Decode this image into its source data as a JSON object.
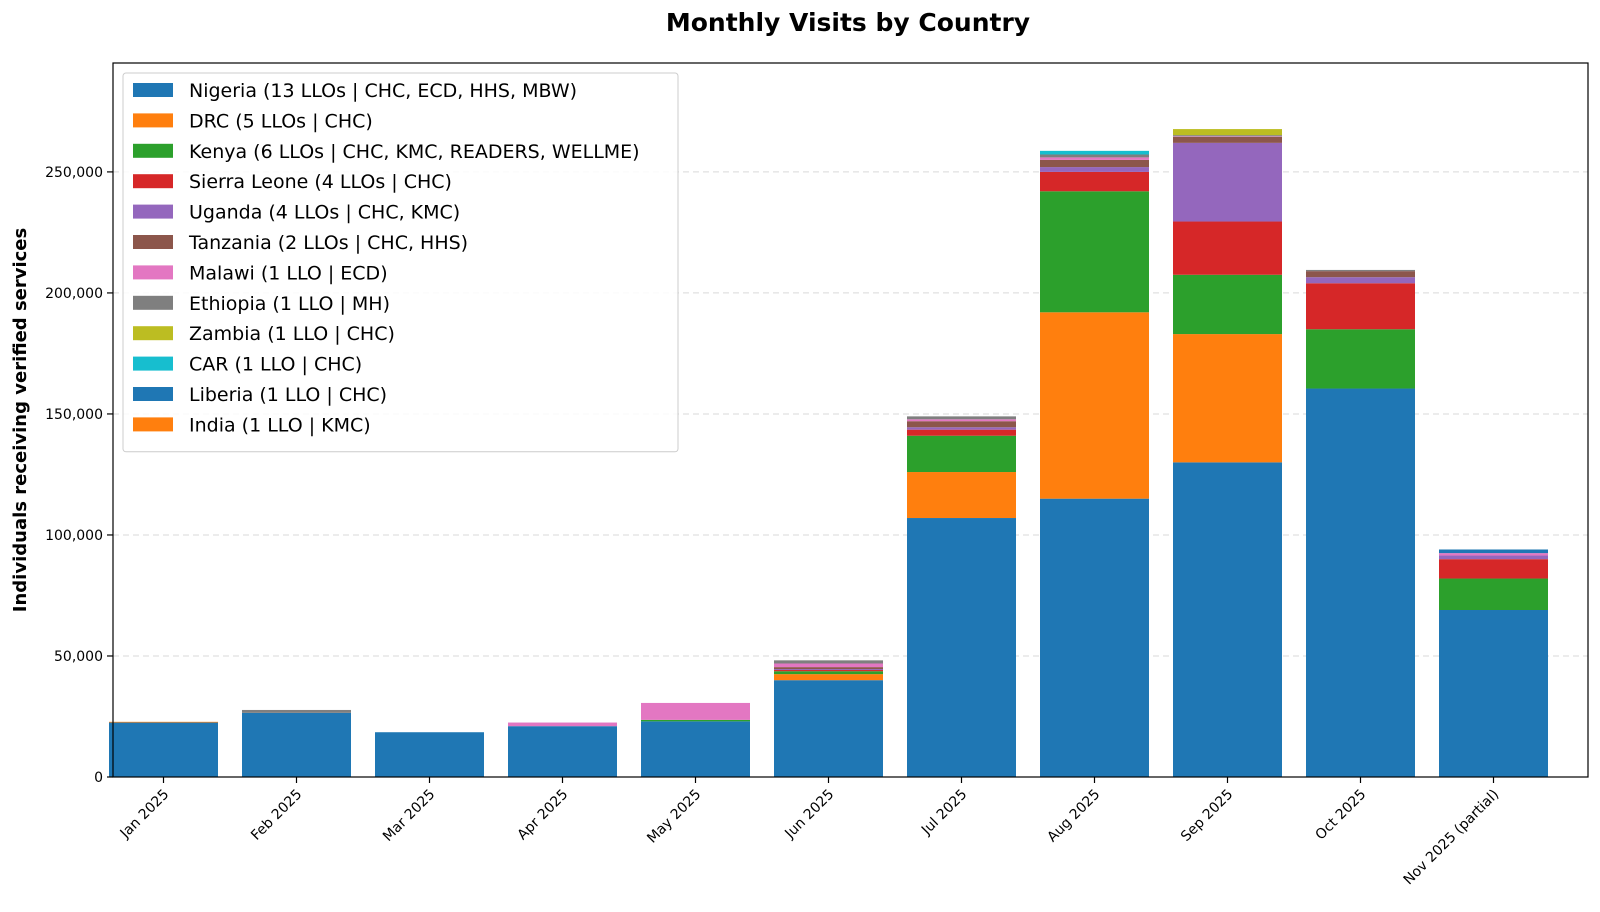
{
  "chart_data": {
    "type": "bar",
    "stacked": true,
    "title": "Monthly Visits by Country",
    "xlabel": "",
    "ylabel": "Individuals receiving verified services",
    "ylim": [
      0,
      295000
    ],
    "yticks": [
      0,
      50000,
      100000,
      150000,
      200000,
      250000
    ],
    "ytick_labels": [
      "0",
      "50,000",
      "100,000",
      "150,000",
      "200,000",
      "250,000"
    ],
    "grid": "horizontal dashed",
    "legend_position": "top-left",
    "categories": [
      "Jan 2025",
      "Feb 2025",
      "Mar 2025",
      "Apr 2025",
      "May 2025",
      "Jun 2025",
      "Jul 2025",
      "Aug 2025",
      "Sep 2025",
      "Oct 2025",
      "Nov 2025 (partial)"
    ],
    "series": [
      {
        "name": "Nigeria (13 LLOs | CHC, ECD, HHS, MBW)",
        "color": "#1f77b4",
        "values": [
          22500,
          26500,
          18500,
          21000,
          23000,
          40000,
          107000,
          115000,
          130000,
          160500,
          69000
        ]
      },
      {
        "name": "DRC (5 LLOs | CHC)",
        "color": "#ff7f0e",
        "values": [
          300,
          0,
          0,
          0,
          0,
          2500,
          19000,
          77000,
          53000,
          0,
          0
        ]
      },
      {
        "name": "Kenya (6 LLOs | CHC, KMC, READERS, WELLME)",
        "color": "#2ca02c",
        "values": [
          0,
          0,
          0,
          0,
          600,
          1200,
          15000,
          50000,
          24500,
          24500,
          13000
        ]
      },
      {
        "name": "Sierra Leone (4 LLOs | CHC)",
        "color": "#d62728",
        "values": [
          0,
          0,
          0,
          0,
          0,
          500,
          2500,
          8000,
          22000,
          19000,
          8000
        ]
      },
      {
        "name": "Uganda (4 LLOs | CHC, KMC)",
        "color": "#9467bd",
        "values": [
          0,
          0,
          0,
          0,
          0,
          400,
          1000,
          2000,
          32500,
          2500,
          1500
        ]
      },
      {
        "name": "Tanzania (2 LLOs | CHC, HHS)",
        "color": "#8c564b",
        "values": [
          0,
          0,
          0,
          0,
          0,
          800,
          2500,
          3000,
          2500,
          2500,
          0
        ]
      },
      {
        "name": "Malawi (1 LLO | ECD)",
        "color": "#e377c2",
        "values": [
          0,
          0,
          0,
          1500,
          7000,
          1500,
          800,
          1000,
          200,
          0,
          1000
        ]
      },
      {
        "name": "Ethiopia (1 LLO | MH)",
        "color": "#7f7f7f",
        "values": [
          0,
          1200,
          0,
          0,
          0,
          1300,
          1200,
          1200,
          500,
          500,
          0
        ]
      },
      {
        "name": "Zambia (1 LLO | CHC)",
        "color": "#bcbd22",
        "values": [
          0,
          0,
          0,
          0,
          0,
          0,
          0,
          0,
          2500,
          0,
          0
        ]
      },
      {
        "name": "CAR (1 LLO | CHC)",
        "color": "#17becf",
        "values": [
          0,
          0,
          0,
          0,
          0,
          0,
          0,
          1500,
          0,
          0,
          0
        ]
      },
      {
        "name": "Liberia (1 LLO | CHC)",
        "color": "#1f77b4",
        "values": [
          0,
          0,
          0,
          0,
          0,
          0,
          0,
          0,
          0,
          0,
          1500
        ]
      },
      {
        "name": "India (1 LLO | KMC)",
        "color": "#ff7f0e",
        "values": [
          0,
          0,
          0,
          0,
          0,
          0,
          0,
          0,
          0,
          0,
          0
        ]
      }
    ]
  }
}
